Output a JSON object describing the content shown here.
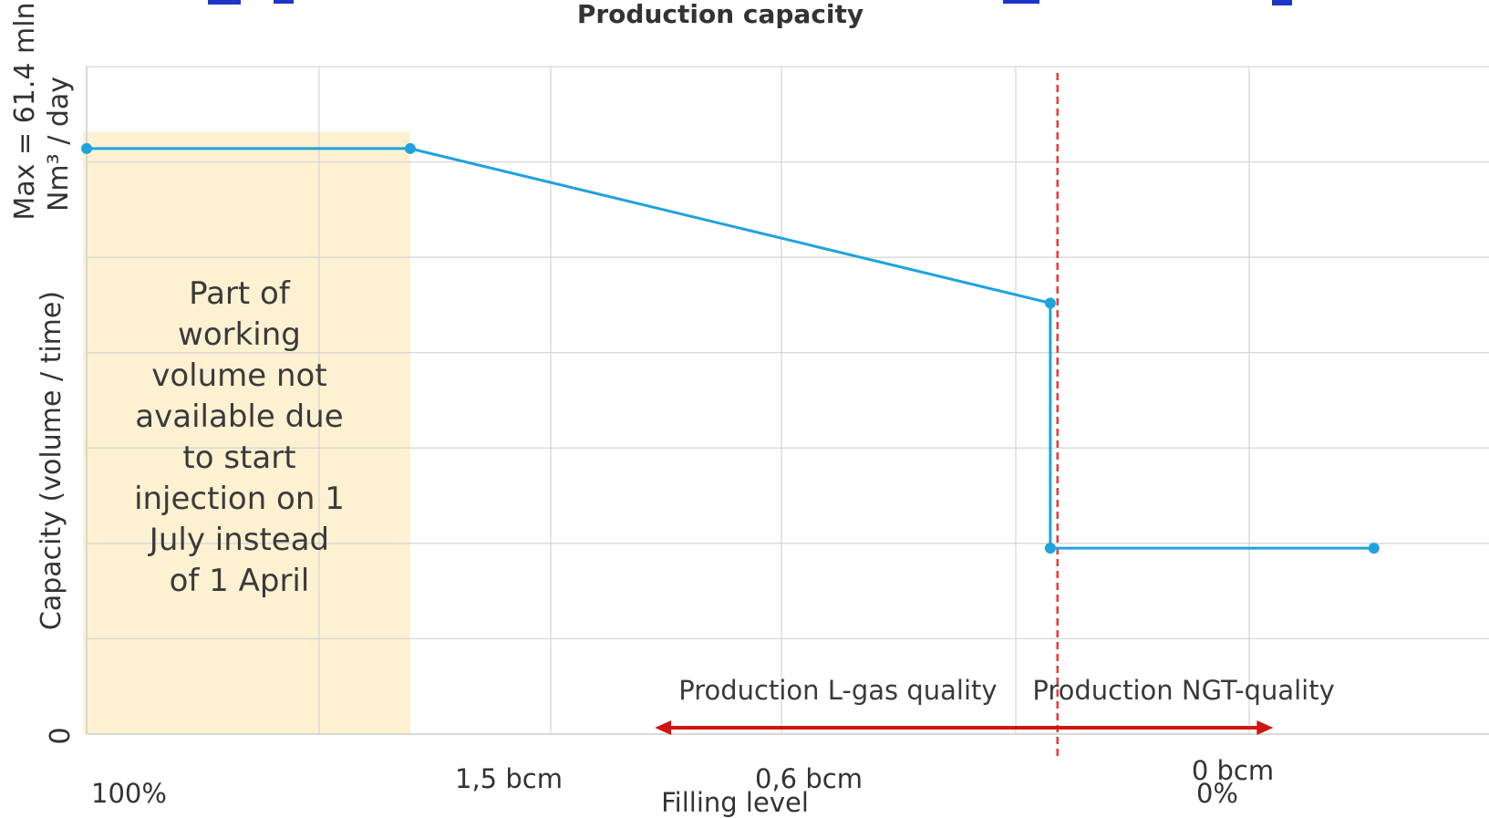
{
  "chart_data": {
    "type": "line",
    "title": "Production capacity",
    "xlabel": "Filling level",
    "ylabel": "Capacity (volume / time)",
    "ymax_label_line1": "Max = 61.4 mln",
    "ymax_label_line2": "Nm³ / day",
    "y_zero_label": "0",
    "x_tick_labels": {
      "left": "100%",
      "p15": "1,5 bcm",
      "p06": "0,6 bcm",
      "zero_bcm": "0 bcm",
      "zero_pct": "0%"
    },
    "x_reversed": true,
    "xlim": [
      1.95,
      0.0
    ],
    "ylim": [
      0,
      70
    ],
    "grid": true,
    "series": [
      {
        "x": [
          1.95,
          1.5,
          0.61,
          0.61,
          0.16
        ],
        "y": [
          61.4,
          61.4,
          45.2,
          19.5,
          19.5
        ]
      }
    ],
    "threshold_x": 0.6,
    "shaded_region": {
      "x_from": 1.95,
      "x_to": 1.5,
      "text": "Part of working volume not available due to start injection on 1 July instead of 1 April"
    },
    "arrows": {
      "left_label": "Production L-gas quality",
      "right_label": "Production NGT-quality",
      "x_from": 1.16,
      "x_to": 0.3
    },
    "colors": {
      "line": "#1fa3dc",
      "shade": "#fdf1d2",
      "threshold": "#e23b3b",
      "arrow": "#d0160e",
      "grid": "#d4d4d4",
      "text": "#333333",
      "top_banner": "#1f35c8"
    }
  }
}
